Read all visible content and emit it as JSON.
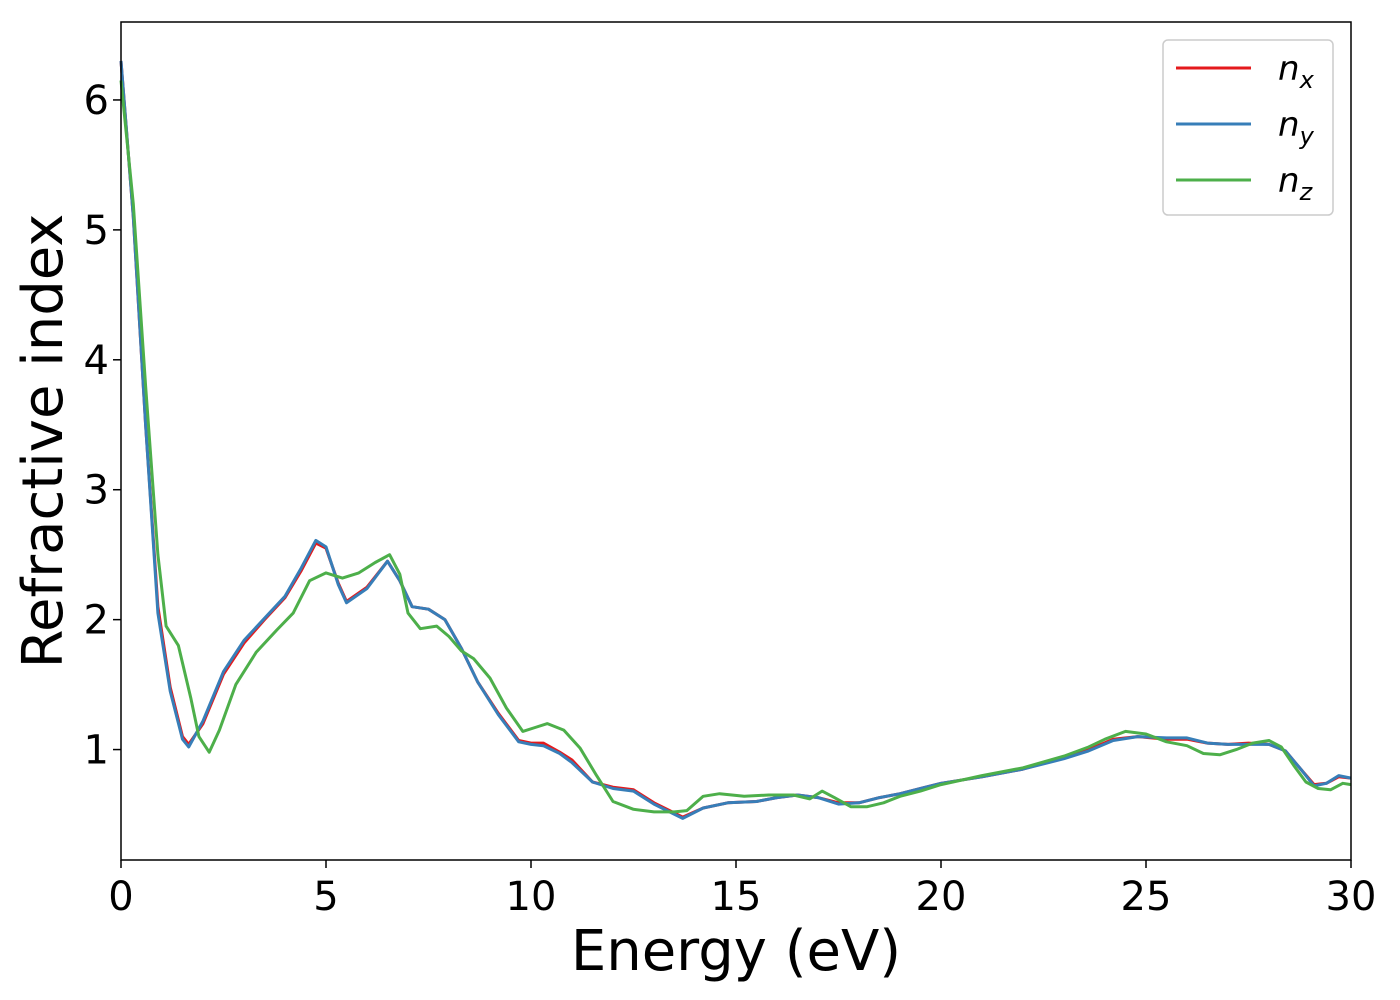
{
  "chart_data": {
    "type": "line",
    "xlabel": "Energy (eV)",
    "ylabel": "Refractive index",
    "xlim": [
      0,
      30
    ],
    "ylim": [
      0.15,
      6.6
    ],
    "xticks": [
      0,
      5,
      10,
      15,
      20,
      25,
      30
    ],
    "yticks": [
      1,
      2,
      3,
      4,
      5,
      6
    ],
    "grid": false,
    "legend_position": "top-right",
    "series": [
      {
        "name": "n_x",
        "name_base": "n",
        "name_sub": "x",
        "color": "#e41a1c",
        "x": [
          0,
          0.3,
          0.6,
          0.9,
          1.2,
          1.5,
          1.65,
          2.0,
          2.5,
          3.0,
          3.5,
          4.0,
          4.4,
          4.75,
          5.0,
          5.3,
          5.5,
          6.0,
          6.5,
          6.8,
          7.1,
          7.5,
          7.9,
          8.3,
          8.7,
          9.2,
          9.7,
          10.0,
          10.3,
          10.7,
          11.0,
          11.5,
          12.0,
          12.5,
          13.0,
          13.7,
          14.2,
          14.8,
          15.5,
          16.0,
          16.5,
          17.0,
          17.5,
          18.0,
          18.5,
          19.0,
          19.5,
          20.0,
          21.0,
          22.0,
          23.0,
          23.6,
          24.2,
          24.8,
          25.5,
          26.0,
          26.5,
          27.0,
          27.5,
          28.0,
          28.4,
          28.8,
          29.1,
          29.4,
          29.7,
          30.0
        ],
        "values": [
          6.3,
          5.1,
          3.5,
          2.1,
          1.48,
          1.1,
          1.04,
          1.2,
          1.58,
          1.82,
          2.0,
          2.17,
          2.38,
          2.59,
          2.55,
          2.28,
          2.14,
          2.25,
          2.45,
          2.3,
          2.1,
          2.08,
          2.0,
          1.78,
          1.52,
          1.28,
          1.07,
          1.05,
          1.05,
          0.98,
          0.92,
          0.75,
          0.71,
          0.69,
          0.59,
          0.48,
          0.55,
          0.59,
          0.6,
          0.63,
          0.65,
          0.63,
          0.59,
          0.59,
          0.63,
          0.66,
          0.7,
          0.74,
          0.79,
          0.85,
          0.94,
          1.0,
          1.08,
          1.1,
          1.08,
          1.08,
          1.05,
          1.04,
          1.05,
          1.04,
          0.99,
          0.84,
          0.73,
          0.74,
          0.79,
          0.78
        ]
      },
      {
        "name": "n_y",
        "name_base": "n",
        "name_sub": "y",
        "color": "#377eb8",
        "x": [
          0,
          0.3,
          0.6,
          0.9,
          1.2,
          1.5,
          1.65,
          2.0,
          2.5,
          3.0,
          3.5,
          4.0,
          4.4,
          4.75,
          5.0,
          5.3,
          5.5,
          6.0,
          6.5,
          6.8,
          7.1,
          7.5,
          7.9,
          8.3,
          8.7,
          9.2,
          9.7,
          10.0,
          10.3,
          10.7,
          11.0,
          11.5,
          12.0,
          12.5,
          13.0,
          13.7,
          14.2,
          14.8,
          15.5,
          16.0,
          16.5,
          17.0,
          17.5,
          18.0,
          18.5,
          19.0,
          19.5,
          20.0,
          21.0,
          22.0,
          23.0,
          23.6,
          24.2,
          24.8,
          25.5,
          26.0,
          26.5,
          27.0,
          27.5,
          28.0,
          28.4,
          28.8,
          29.1,
          29.4,
          29.7,
          30.0
        ],
        "values": [
          6.3,
          5.1,
          3.5,
          2.05,
          1.45,
          1.08,
          1.02,
          1.22,
          1.6,
          1.84,
          2.01,
          2.18,
          2.4,
          2.61,
          2.56,
          2.27,
          2.13,
          2.24,
          2.45,
          2.3,
          2.1,
          2.08,
          2.0,
          1.78,
          1.52,
          1.27,
          1.06,
          1.04,
          1.03,
          0.97,
          0.9,
          0.75,
          0.7,
          0.68,
          0.58,
          0.47,
          0.55,
          0.59,
          0.6,
          0.63,
          0.65,
          0.63,
          0.58,
          0.59,
          0.63,
          0.66,
          0.7,
          0.74,
          0.79,
          0.85,
          0.93,
          0.99,
          1.07,
          1.1,
          1.09,
          1.09,
          1.05,
          1.04,
          1.04,
          1.04,
          0.99,
          0.84,
          0.72,
          0.74,
          0.8,
          0.78
        ]
      },
      {
        "name": "n_z",
        "name_base": "n",
        "name_sub": "z",
        "color": "#4daf4a",
        "x": [
          0,
          0.3,
          0.6,
          0.9,
          1.1,
          1.4,
          1.7,
          1.9,
          2.15,
          2.4,
          2.8,
          3.3,
          3.8,
          4.2,
          4.6,
          5.0,
          5.4,
          5.8,
          6.2,
          6.55,
          6.8,
          7.0,
          7.3,
          7.7,
          8.0,
          8.3,
          8.6,
          9.0,
          9.4,
          9.8,
          10.1,
          10.4,
          10.8,
          11.2,
          11.6,
          12.0,
          12.5,
          13.0,
          13.5,
          13.8,
          14.2,
          14.6,
          15.2,
          15.8,
          16.4,
          16.8,
          17.1,
          17.4,
          17.8,
          18.2,
          18.6,
          19.0,
          19.5,
          20.0,
          21.0,
          22.0,
          23.0,
          23.6,
          24.0,
          24.5,
          25.0,
          25.5,
          26.0,
          26.4,
          26.8,
          27.2,
          27.6,
          28.0,
          28.3,
          28.6,
          28.9,
          29.2,
          29.5,
          29.8,
          30.0
        ],
        "values": [
          6.15,
          5.2,
          3.8,
          2.5,
          1.95,
          1.8,
          1.4,
          1.1,
          0.98,
          1.15,
          1.5,
          1.75,
          1.92,
          2.05,
          2.3,
          2.36,
          2.32,
          2.36,
          2.44,
          2.5,
          2.35,
          2.05,
          1.93,
          1.95,
          1.87,
          1.76,
          1.7,
          1.55,
          1.32,
          1.14,
          1.17,
          1.2,
          1.15,
          1.01,
          0.8,
          0.6,
          0.54,
          0.52,
          0.52,
          0.53,
          0.64,
          0.66,
          0.64,
          0.65,
          0.65,
          0.62,
          0.68,
          0.63,
          0.56,
          0.56,
          0.59,
          0.64,
          0.68,
          0.73,
          0.8,
          0.86,
          0.95,
          1.02,
          1.08,
          1.14,
          1.12,
          1.06,
          1.03,
          0.97,
          0.96,
          1.0,
          1.05,
          1.07,
          1.02,
          0.88,
          0.75,
          0.7,
          0.69,
          0.74,
          0.73
        ]
      }
    ]
  }
}
